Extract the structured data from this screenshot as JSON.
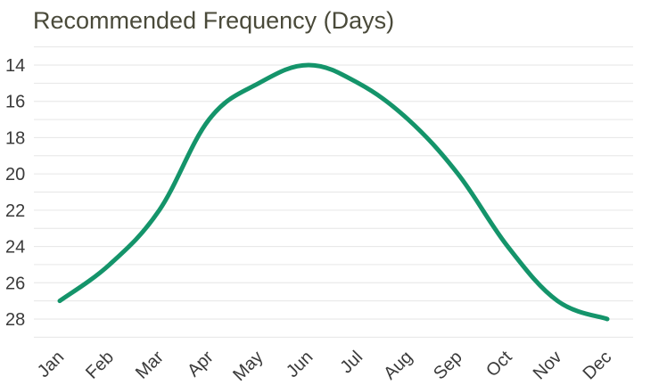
{
  "chart_data": {
    "type": "line",
    "title": "Recommended Frequency (Days)",
    "xlabel": "",
    "ylabel": "",
    "categories": [
      "Jan",
      "Feb",
      "Mar",
      "Apr",
      "May",
      "Jun",
      "Jul",
      "Aug",
      "Sep",
      "Oct",
      "Nov",
      "Dec"
    ],
    "series": [
      {
        "values": [
          27,
          25,
          22,
          17,
          15,
          14,
          15,
          17,
          20,
          24,
          27,
          28
        ]
      }
    ],
    "y_ticks": [
      14,
      16,
      18,
      20,
      22,
      24,
      26,
      28
    ],
    "ylim": [
      13,
      29.5
    ],
    "y_axis_inverted": true,
    "grid": true,
    "line_color": "#14946a",
    "grid_color": "#e6e6e6",
    "title_color": "#4a4a3a"
  }
}
